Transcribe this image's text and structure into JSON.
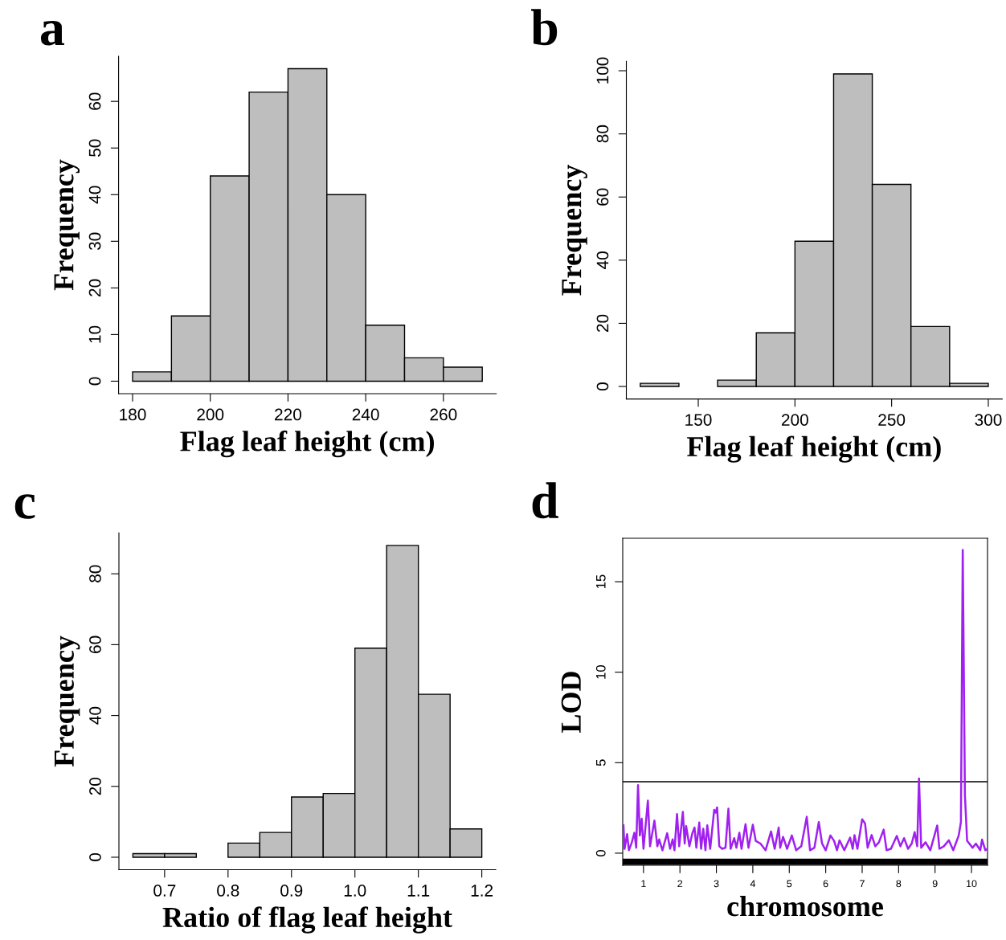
{
  "chart_data": [
    {
      "type": "histogram",
      "title": "a",
      "xlabel": "Flag leaf height (cm)",
      "ylabel": "Frequency",
      "color": "#bebebe",
      "bins": [
        180,
        190,
        200,
        210,
        220,
        230,
        240,
        250,
        260,
        270
      ],
      "values": [
        2,
        14,
        44,
        62,
        67,
        40,
        12,
        5,
        3
      ],
      "xlim": [
        176.4,
        273.6
      ],
      "xticks": [
        180,
        200,
        220,
        240,
        260
      ],
      "ylim": [
        -2.68,
        69.68
      ],
      "yticks": [
        0,
        10,
        20,
        30,
        40,
        50,
        60
      ],
      "grid": false
    },
    {
      "type": "histogram",
      "title": "b",
      "xlabel": "Flag leaf height (cm)",
      "ylabel": "Frequency",
      "color": "#bebebe",
      "bins": [
        120,
        140,
        160,
        180,
        200,
        220,
        240,
        260,
        280,
        300
      ],
      "values": [
        1,
        0,
        2,
        17,
        46,
        99,
        64,
        19,
        1
      ],
      "xlim": [
        112.8,
        307.2
      ],
      "xticks": [
        150,
        200,
        250,
        300
      ],
      "ylim": [
        -3.96,
        102.96
      ],
      "yticks": [
        0,
        20,
        40,
        60,
        80,
        100
      ],
      "grid": false
    },
    {
      "type": "histogram",
      "title": "c",
      "xlabel": "Ratio of flag leaf height",
      "ylabel": "Frequency",
      "color": "#bebebe",
      "bins": [
        0.65,
        0.7,
        0.75,
        0.8,
        0.85,
        0.9,
        0.95,
        1.0,
        1.05,
        1.1,
        1.15,
        1.2
      ],
      "values": [
        1,
        1,
        0,
        4,
        7,
        17,
        18,
        59,
        88,
        46,
        8
      ],
      "xlim": [
        0.628,
        1.222
      ],
      "xticks": [
        0.7,
        0.8,
        0.9,
        {
          "value": 1.0,
          "label": "1.0"
        },
        1.1,
        1.2
      ],
      "ylim": [
        -3.52,
        91.52
      ],
      "yticks": [
        0,
        20,
        40,
        60,
        80
      ],
      "grid": false
    },
    {
      "type": "line",
      "title": "d",
      "xlabel": "chromosome",
      "ylabel": "LOD",
      "grid": false,
      "marker": "none",
      "line_style": "solid",
      "xlim": [
        0.43,
        10.44
      ],
      "xticks": [
        1,
        2,
        3,
        4,
        5,
        6,
        7,
        8,
        9,
        10
      ],
      "ylim": [
        -0.67,
        17.4
      ],
      "yticks": [
        0,
        5,
        10,
        15
      ],
      "ref_lines": [
        {
          "axis": "y",
          "value": 3.95,
          "color": "#000000",
          "line_style": "solid"
        }
      ],
      "bands": [
        {
          "axis": "y",
          "from": -0.65,
          "to": -0.3,
          "color": "#000000"
        }
      ],
      "series": [
        {
          "color": "#a020f0",
          "x": [
            0.45,
            0.48,
            0.55,
            0.6,
            0.68,
            0.75,
            0.8,
            0.85,
            0.9,
            0.95,
            1.0,
            1.12,
            1.18,
            1.3,
            1.38,
            1.43,
            1.52,
            1.65,
            1.73,
            1.8,
            1.85,
            1.92,
            1.98,
            2.08,
            2.13,
            2.17,
            2.26,
            2.34,
            2.4,
            2.45,
            2.53,
            2.58,
            2.64,
            2.7,
            2.75,
            2.83,
            2.94,
            2.98,
            3.02,
            3.08,
            3.16,
            3.25,
            3.33,
            3.39,
            3.49,
            3.55,
            3.63,
            3.69,
            3.8,
            3.88,
            4.0,
            4.08,
            4.21,
            4.35,
            4.5,
            4.6,
            4.71,
            4.75,
            4.83,
            4.94,
            5.07,
            5.19,
            5.33,
            5.48,
            5.57,
            5.69,
            5.81,
            5.9,
            6.0,
            6.13,
            6.23,
            6.31,
            6.38,
            6.51,
            6.67,
            6.74,
            6.79,
            6.87,
            7.0,
            7.08,
            7.15,
            7.26,
            7.36,
            7.46,
            7.59,
            7.67,
            7.79,
            7.95,
            8.05,
            8.15,
            8.26,
            8.36,
            8.44,
            8.51,
            8.56,
            8.62,
            8.74,
            8.87,
            9.06,
            9.12,
            9.24,
            9.38,
            9.5,
            9.65,
            9.71,
            9.76,
            9.82,
            9.88,
            10.03,
            10.12,
            10.24,
            10.29,
            10.38,
            10.44
          ],
          "values": [
            1.54,
            0.24,
            1.05,
            0.16,
            0.6,
            1.13,
            0.3,
            3.76,
            0.98,
            1.9,
            0.24,
            2.9,
            0.38,
            1.8,
            0.38,
            0.76,
            0.16,
            1.1,
            0.24,
            0.76,
            0.16,
            2.16,
            0.38,
            2.28,
            0.53,
            1.5,
            0.38,
            1.1,
            1.42,
            0.3,
            1.69,
            0.24,
            1.35,
            0.16,
            1.54,
            0.24,
            2.39,
            2.24,
            2.53,
            0.38,
            0.24,
            0.3,
            2.46,
            0.24,
            0.83,
            0.3,
            1.13,
            0.24,
            1.6,
            0.3,
            1.57,
            0.68,
            0.53,
            0.16,
            1.2,
            0.24,
            1.42,
            0.3,
            0.9,
            0.24,
            0.98,
            0.16,
            0.38,
            2.01,
            0.16,
            0.3,
            1.72,
            0.53,
            0.16,
            0.98,
            0.68,
            0.16,
            0.71,
            0.16,
            0.86,
            0.24,
            1.0,
            0.24,
            1.87,
            1.64,
            0.3,
            1.0,
            0.38,
            0.6,
            1.3,
            0.16,
            0.24,
            0.95,
            0.38,
            0.83,
            0.24,
            0.53,
            1.16,
            0.38,
            4.12,
            0.3,
            0.6,
            0.16,
            1.53,
            0.24,
            0.38,
            0.71,
            0.16,
            0.98,
            1.72,
            16.76,
            3.2,
            0.68,
            0.3,
            0.53,
            0.16,
            0.75,
            0.16,
            0.24
          ]
        }
      ]
    }
  ]
}
